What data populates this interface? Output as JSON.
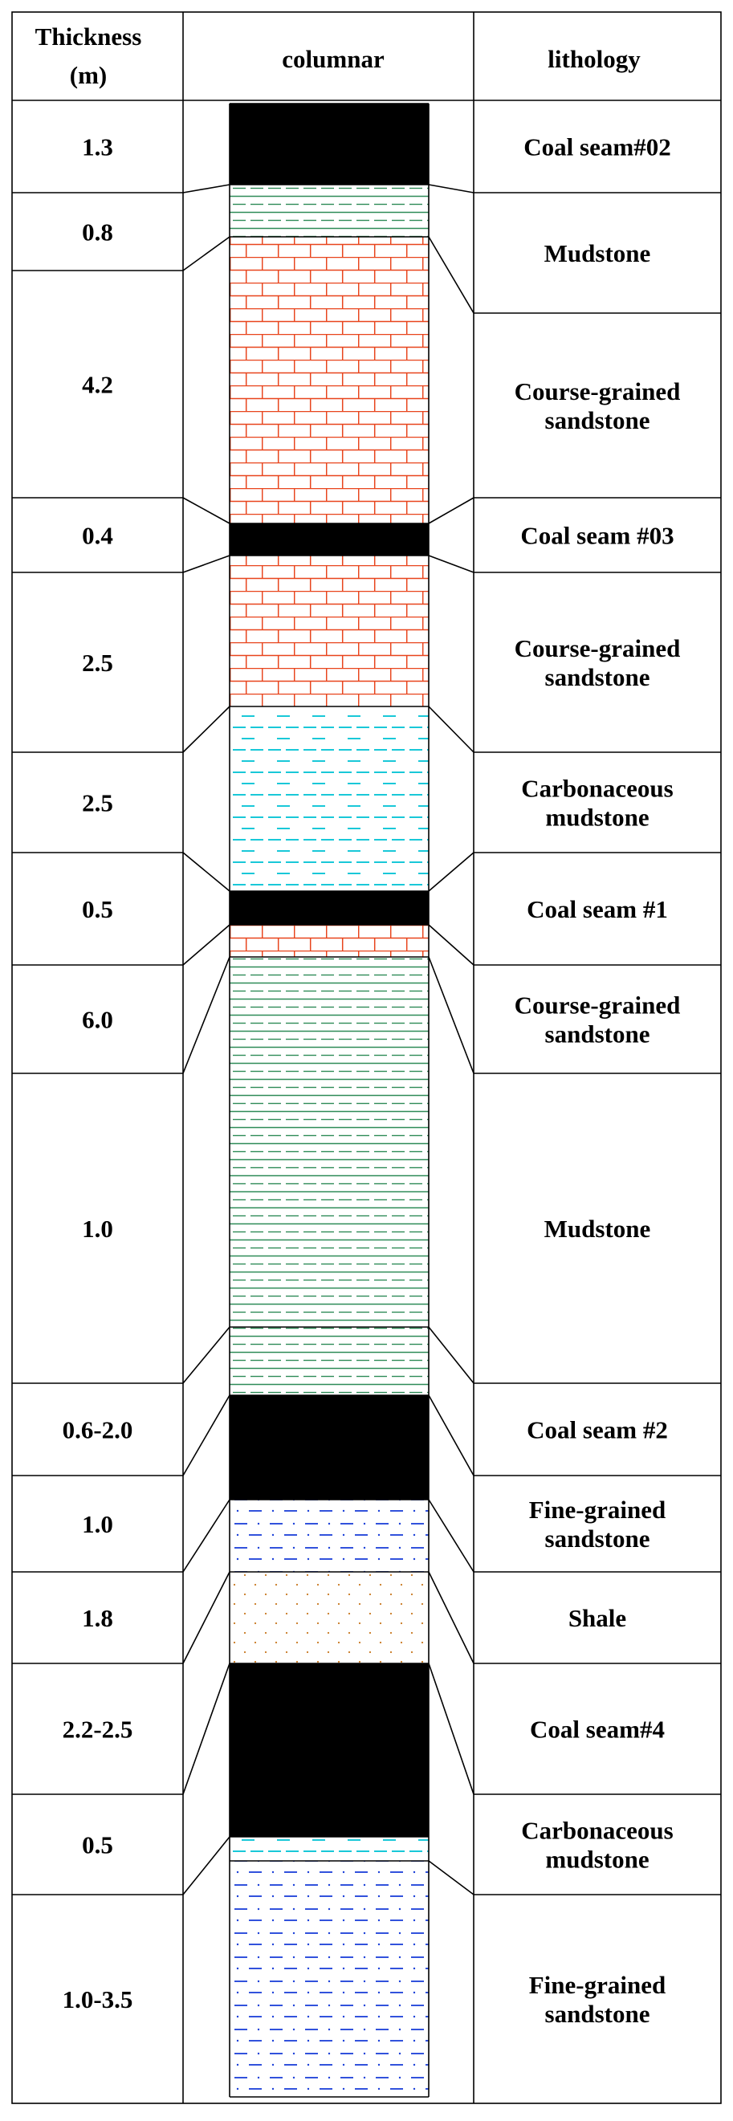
{
  "headers": {
    "thickness_line1": "Thickness",
    "thickness_line2": "(m)",
    "columnar": "columnar",
    "lithology": "lithology"
  },
  "thickness_rows": [
    "1.3",
    "0.8",
    "4.2",
    "0.4",
    "2.5",
    "2.5",
    "0.5",
    "6.0",
    "1.0",
    "0.6-2.0",
    "1.0",
    "1.8",
    "2.2-2.5",
    "0.5",
    "1.0-3.5"
  ],
  "lithology_rows": [
    [
      "Coal seam#02"
    ],
    [
      "Mudstone"
    ],
    [
      "Course-grained",
      "sandstone"
    ],
    [
      "Coal seam #03"
    ],
    [
      "Course-grained",
      "sandstone"
    ],
    [
      "Carbonaceous",
      "mudstone"
    ],
    [
      "Coal seam #1"
    ],
    [
      "Course-grained",
      "sandstone"
    ],
    [
      "Mudstone"
    ],
    [
      "Coal seam #2"
    ],
    [
      "Fine-grained",
      "sandstone"
    ],
    [
      "Shale"
    ],
    [
      "Coal seam#4"
    ],
    [
      "Carbonaceous",
      "mudstone"
    ],
    [
      "Fine-grained",
      "sandstone"
    ]
  ],
  "column_layers": [
    "coal",
    "mudstone",
    "sandstone",
    "coal",
    "sandstone",
    "carbonaceous-mudstone",
    "coal",
    "sandstone",
    "mudstone",
    "coal",
    "fine-sandstone",
    "shale",
    "coal",
    "carbonaceous-mudstone",
    "fine-sandstone"
  ],
  "colors": {
    "coal": "#000000",
    "sandstone_brick": "#e8441c",
    "mudstone_line": "#2e8b57",
    "carbonaceous_dash": "#19c8d8",
    "fine_sand_dash": "#1a3fd8",
    "shale_dot": "#c87820"
  }
}
